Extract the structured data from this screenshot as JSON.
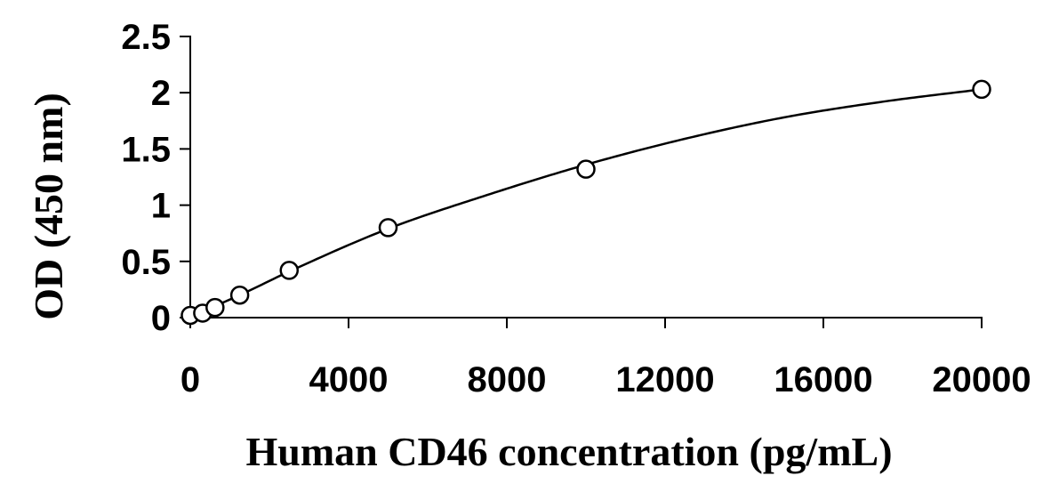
{
  "chart_data": {
    "type": "scatter",
    "xlabel": "Human CD46 concentration (pg/mL)",
    "ylabel": "OD (450 nm)",
    "xlim": [
      0,
      20000
    ],
    "ylim": [
      0,
      2.5
    ],
    "xticks": [
      0,
      4000,
      8000,
      12000,
      16000,
      20000
    ],
    "yticks": [
      0,
      0.5,
      1,
      1.5,
      2,
      2.5
    ],
    "xtick_labels": [
      "0",
      "4000",
      "8000",
      "12000",
      "16000",
      "20000"
    ],
    "ytick_labels": [
      "0",
      "0.5",
      "1",
      "1.5",
      "2",
      "2.5"
    ],
    "grid": false,
    "series": [
      {
        "marker": "open-circle",
        "x": [
          0,
          312.5,
          625,
          1250,
          2500,
          5000,
          10000,
          20000
        ],
        "y": [
          0.02,
          0.04,
          0.09,
          0.2,
          0.42,
          0.8,
          1.32,
          2.03
        ]
      }
    ],
    "fit_curve": {
      "x": [
        0,
        1250,
        2500,
        5000,
        7500,
        10000,
        12500,
        15000,
        17500,
        20000
      ],
      "y": [
        0.01,
        0.2,
        0.41,
        0.79,
        1.09,
        1.36,
        1.59,
        1.78,
        1.92,
        2.03
      ]
    }
  }
}
